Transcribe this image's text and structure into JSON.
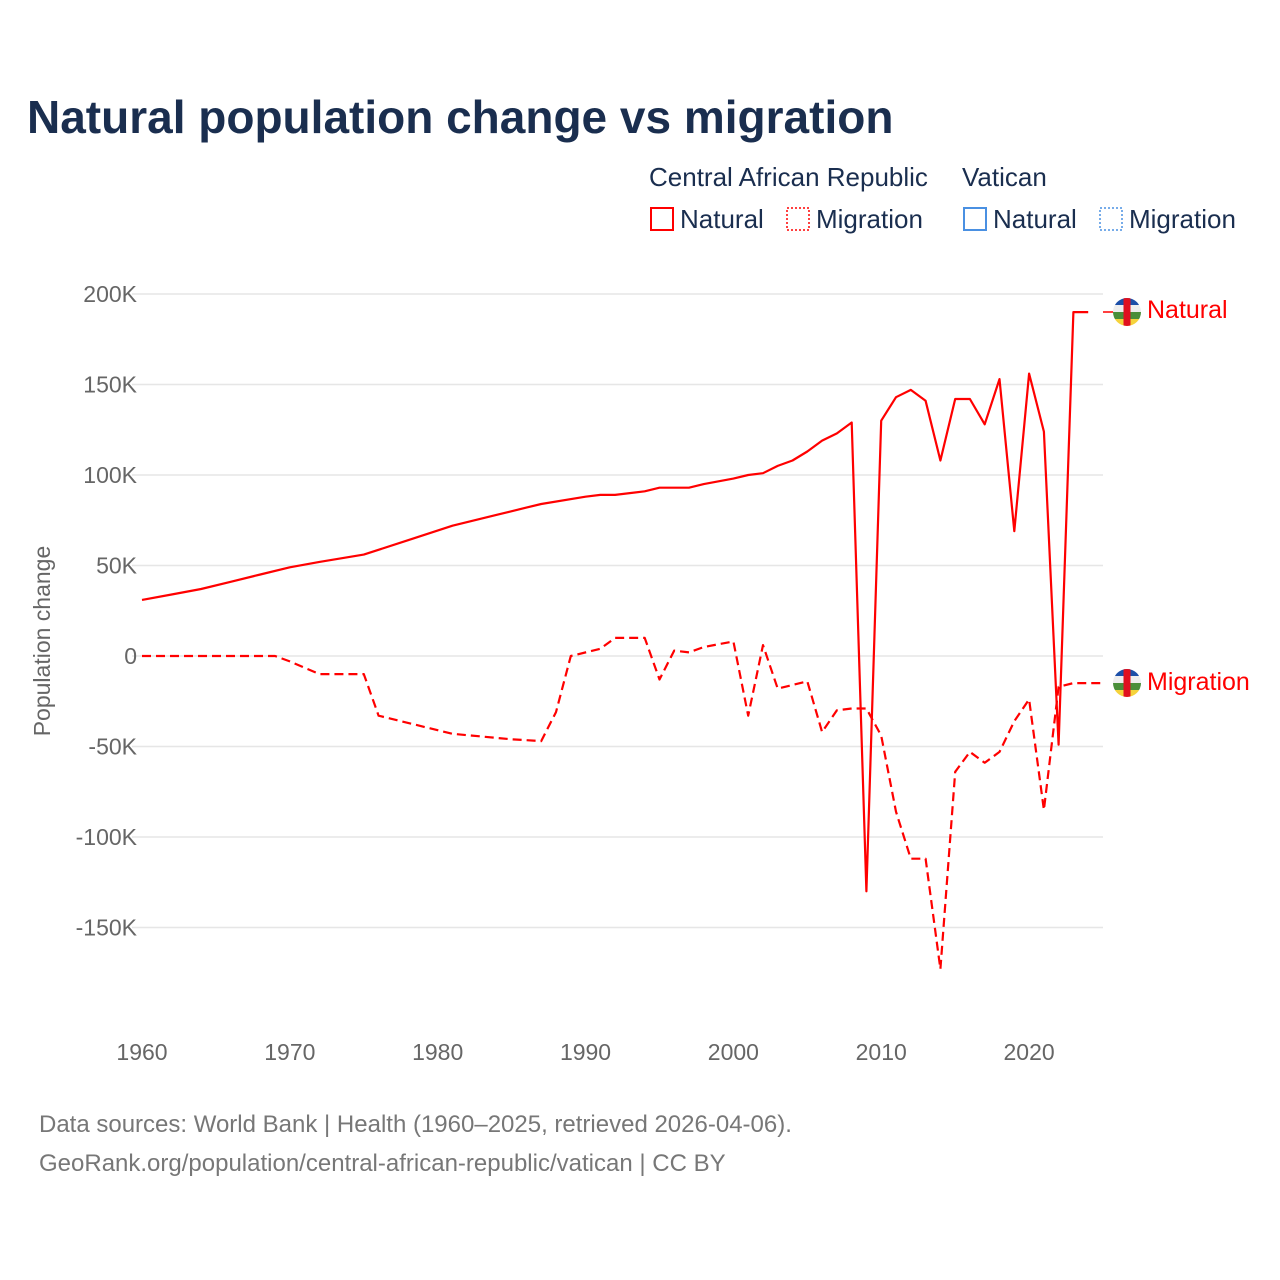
{
  "title": "Natural population change vs migration",
  "legend": {
    "groups": [
      {
        "name": "Central African Republic",
        "color": "#ff0000",
        "items": [
          "Natural",
          "Migration"
        ]
      },
      {
        "name": "Vatican",
        "color": "#4a90e2",
        "items": [
          "Natural",
          "Migration"
        ]
      }
    ]
  },
  "source_lines": [
    "Data sources: World Bank | Health (1960–2025, retrieved 2026-04-06).",
    "GeoRank.org/population/central-african-republic/vatican | CC BY"
  ],
  "end_labels": {
    "natural": "Natural",
    "migration": "Migration"
  },
  "chart_data": {
    "type": "line",
    "title": "Natural population change vs migration",
    "xlabel": "",
    "ylabel": "Population change",
    "xlim": [
      1960,
      2025
    ],
    "ylim": [
      -180000,
      210000
    ],
    "xticks": [
      1960,
      1970,
      1980,
      1990,
      2000,
      2010,
      2020
    ],
    "yticks": [
      200000,
      150000,
      100000,
      50000,
      0,
      -50000,
      -100000,
      -150000
    ],
    "ytick_labels": [
      "200K",
      "150K",
      "100K",
      "50K",
      "0",
      "-50K",
      "-100K",
      "-150K"
    ],
    "grid": true,
    "series": [
      {
        "name": "Central African Republic – Natural",
        "style": "solid",
        "color": "#ff0000",
        "x": [
          1960,
          1962,
          1964,
          1966,
          1968,
          1970,
          1972,
          1975,
          1978,
          1981,
          1984,
          1986,
          1987,
          1990,
          1991,
          1992,
          1994,
          1995,
          1997,
          1998,
          2000,
          2001,
          2002,
          2003,
          2004,
          2005,
          2006,
          2007,
          2008,
          2009,
          2010,
          2011,
          2012,
          2013,
          2014,
          2015,
          2016,
          2017,
          2018,
          2019,
          2020,
          2021,
          2022,
          2023,
          2024
        ],
        "y": [
          31000,
          34000,
          37000,
          41000,
          45000,
          49000,
          52000,
          56000,
          64000,
          72000,
          78000,
          82000,
          84000,
          88000,
          89000,
          89000,
          91000,
          93000,
          93000,
          95000,
          98000,
          100000,
          101000,
          105000,
          108000,
          113000,
          119000,
          123000,
          129000,
          -130000,
          130000,
          143000,
          147000,
          141000,
          108000,
          142000,
          142000,
          128000,
          153000,
          69000,
          156000,
          124000,
          -49000,
          190000,
          190000
        ]
      },
      {
        "name": "Central African Republic – Migration",
        "style": "dashed",
        "color": "#ff0000",
        "x": [
          1960,
          1969,
          1970,
          1972,
          1975,
          1976,
          1980,
          1981,
          1985,
          1987,
          1988,
          1989,
          1991,
          1992,
          1994,
          1995,
          1996,
          1997,
          1998,
          2000,
          2001,
          2002,
          2003,
          2004,
          2005,
          2006,
          2007,
          2008,
          2009,
          2010,
          2011,
          2012,
          2013,
          2014,
          2015,
          2016,
          2017,
          2018,
          2019,
          2020,
          2021,
          2022,
          2023,
          2024,
          2025
        ],
        "y": [
          0,
          0,
          -3000,
          -10000,
          -10000,
          -33000,
          -41000,
          -43000,
          -46000,
          -47000,
          -31000,
          0,
          4000,
          10000,
          10000,
          -13000,
          3000,
          2000,
          5000,
          8000,
          -33000,
          6000,
          -18000,
          -16000,
          -14000,
          -42000,
          -30000,
          -29000,
          -29000,
          -44000,
          -86000,
          -112000,
          -112000,
          -173000,
          -64000,
          -53000,
          -59000,
          -53000,
          -36000,
          -24000,
          -85000,
          -17000,
          -15000,
          -15000,
          -15000
        ]
      }
    ]
  }
}
